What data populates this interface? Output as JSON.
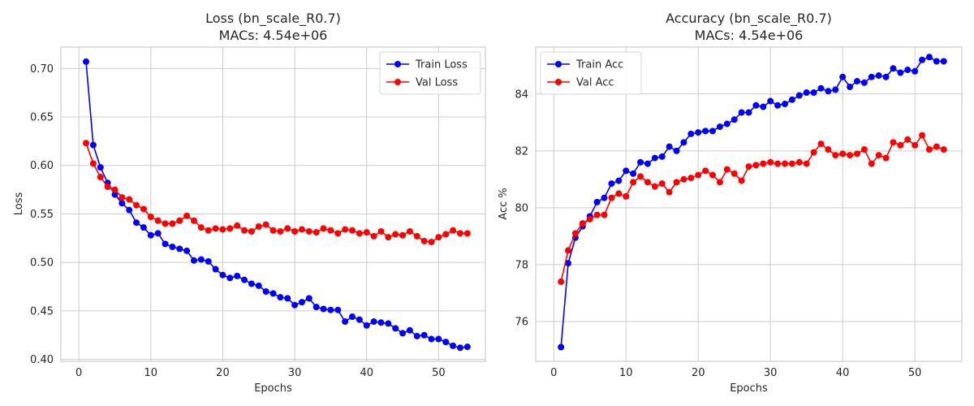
{
  "chart_data": [
    {
      "type": "line",
      "title": "Loss (bn_scale_R0.7)",
      "subtitle": "MACs: 4.54e+06",
      "xlabel": "Epochs",
      "ylabel": "Loss",
      "xlim": [
        -2.5,
        56.5
      ],
      "ylim": [
        0.398,
        0.722
      ],
      "xticks": [
        0,
        10,
        20,
        30,
        40,
        50
      ],
      "yticks": [
        0.4,
        0.45,
        0.5,
        0.55,
        0.6,
        0.65,
        0.7
      ],
      "ytick_decimals": 2,
      "grid": true,
      "legend_position": "top-right",
      "series": [
        {
          "name": "Train Loss",
          "color": "#0000ff",
          "x": [
            1,
            2,
            3,
            4,
            5,
            6,
            7,
            8,
            9,
            10,
            11,
            12,
            13,
            14,
            15,
            16,
            17,
            18,
            19,
            20,
            21,
            22,
            23,
            24,
            25,
            26,
            27,
            28,
            29,
            30,
            31,
            32,
            33,
            34,
            35,
            36,
            37,
            38,
            39,
            40,
            41,
            42,
            43,
            44,
            45,
            46,
            47,
            48,
            49,
            50,
            51,
            52,
            53,
            54
          ],
          "values": [
            0.707,
            0.621,
            0.598,
            0.582,
            0.57,
            0.561,
            0.554,
            0.541,
            0.536,
            0.528,
            0.53,
            0.519,
            0.516,
            0.514,
            0.512,
            0.502,
            0.503,
            0.501,
            0.493,
            0.487,
            0.484,
            0.486,
            0.482,
            0.478,
            0.476,
            0.47,
            0.468,
            0.464,
            0.463,
            0.456,
            0.459,
            0.463,
            0.454,
            0.452,
            0.451,
            0.451,
            0.439,
            0.444,
            0.441,
            0.435,
            0.439,
            0.438,
            0.437,
            0.432,
            0.427,
            0.43,
            0.424,
            0.425,
            0.421,
            0.421,
            0.418,
            0.414,
            0.412,
            0.413
          ]
        },
        {
          "name": "Val Loss",
          "color": "#ff0000",
          "x": [
            1,
            2,
            3,
            4,
            5,
            6,
            7,
            8,
            9,
            10,
            11,
            12,
            13,
            14,
            15,
            16,
            17,
            18,
            19,
            20,
            21,
            22,
            23,
            24,
            25,
            26,
            27,
            28,
            29,
            30,
            31,
            32,
            33,
            34,
            35,
            36,
            37,
            38,
            39,
            40,
            41,
            42,
            43,
            44,
            45,
            46,
            47,
            48,
            49,
            50,
            51,
            52,
            53,
            54
          ],
          "values": [
            0.623,
            0.602,
            0.588,
            0.578,
            0.575,
            0.567,
            0.565,
            0.559,
            0.555,
            0.547,
            0.543,
            0.54,
            0.54,
            0.543,
            0.548,
            0.543,
            0.536,
            0.533,
            0.535,
            0.534,
            0.535,
            0.538,
            0.533,
            0.532,
            0.537,
            0.539,
            0.533,
            0.532,
            0.535,
            0.532,
            0.534,
            0.532,
            0.531,
            0.535,
            0.533,
            0.53,
            0.534,
            0.533,
            0.53,
            0.531,
            0.527,
            0.532,
            0.526,
            0.529,
            0.528,
            0.532,
            0.527,
            0.522,
            0.521,
            0.526,
            0.529,
            0.533,
            0.53,
            0.53
          ]
        }
      ]
    },
    {
      "type": "line",
      "title": "Accuracy (bn_scale_R0.7)",
      "subtitle": "MACs: 4.54e+06",
      "xlabel": "Epochs",
      "ylabel": "Acc %",
      "xlim": [
        -2.5,
        56.5
      ],
      "ylim": [
        74.6,
        85.65
      ],
      "xticks": [
        0,
        10,
        20,
        30,
        40,
        50
      ],
      "yticks": [
        76,
        78,
        80,
        82,
        84
      ],
      "ytick_decimals": 0,
      "grid": true,
      "legend_position": "top-left",
      "series": [
        {
          "name": "Train Acc",
          "color": "#0000ff",
          "x": [
            1,
            2,
            3,
            4,
            5,
            6,
            7,
            8,
            9,
            10,
            11,
            12,
            13,
            14,
            15,
            16,
            17,
            18,
            19,
            20,
            21,
            22,
            23,
            24,
            25,
            26,
            27,
            28,
            29,
            30,
            31,
            32,
            33,
            34,
            35,
            36,
            37,
            38,
            39,
            40,
            41,
            42,
            43,
            44,
            45,
            46,
            47,
            48,
            49,
            50,
            51,
            52,
            53,
            54
          ],
          "values": [
            75.1,
            78.05,
            78.95,
            79.35,
            79.7,
            80.2,
            80.35,
            80.85,
            80.95,
            81.3,
            81.2,
            81.6,
            81.55,
            81.75,
            81.8,
            82.15,
            82.0,
            82.3,
            82.6,
            82.65,
            82.7,
            82.7,
            82.85,
            82.95,
            83.1,
            83.35,
            83.35,
            83.6,
            83.55,
            83.75,
            83.6,
            83.65,
            83.8,
            83.95,
            84.05,
            84.05,
            84.2,
            84.1,
            84.15,
            84.6,
            84.25,
            84.45,
            84.4,
            84.6,
            84.65,
            84.6,
            84.9,
            84.75,
            84.85,
            84.8,
            85.2,
            85.3,
            85.15,
            85.15
          ]
        },
        {
          "name": "Val Acc",
          "color": "#ff0000",
          "x": [
            1,
            2,
            3,
            4,
            5,
            6,
            7,
            8,
            9,
            10,
            11,
            12,
            13,
            14,
            15,
            16,
            17,
            18,
            19,
            20,
            21,
            22,
            23,
            24,
            25,
            26,
            27,
            28,
            29,
            30,
            31,
            32,
            33,
            34,
            35,
            36,
            37,
            38,
            39,
            40,
            41,
            42,
            43,
            44,
            45,
            46,
            47,
            48,
            49,
            50,
            51,
            52,
            53,
            54
          ],
          "values": [
            77.4,
            78.5,
            79.1,
            79.45,
            79.6,
            79.75,
            79.75,
            80.35,
            80.5,
            80.4,
            80.9,
            81.1,
            80.9,
            80.75,
            80.85,
            80.55,
            80.9,
            81.0,
            81.05,
            81.15,
            81.3,
            81.15,
            80.9,
            81.35,
            81.2,
            80.95,
            81.45,
            81.5,
            81.55,
            81.6,
            81.55,
            81.55,
            81.55,
            81.6,
            81.55,
            81.95,
            82.25,
            82.05,
            81.85,
            81.9,
            81.85,
            81.9,
            82.05,
            81.55,
            81.85,
            81.75,
            82.3,
            82.2,
            82.4,
            82.2,
            82.55,
            82.05,
            82.15,
            82.05
          ]
        }
      ]
    }
  ]
}
